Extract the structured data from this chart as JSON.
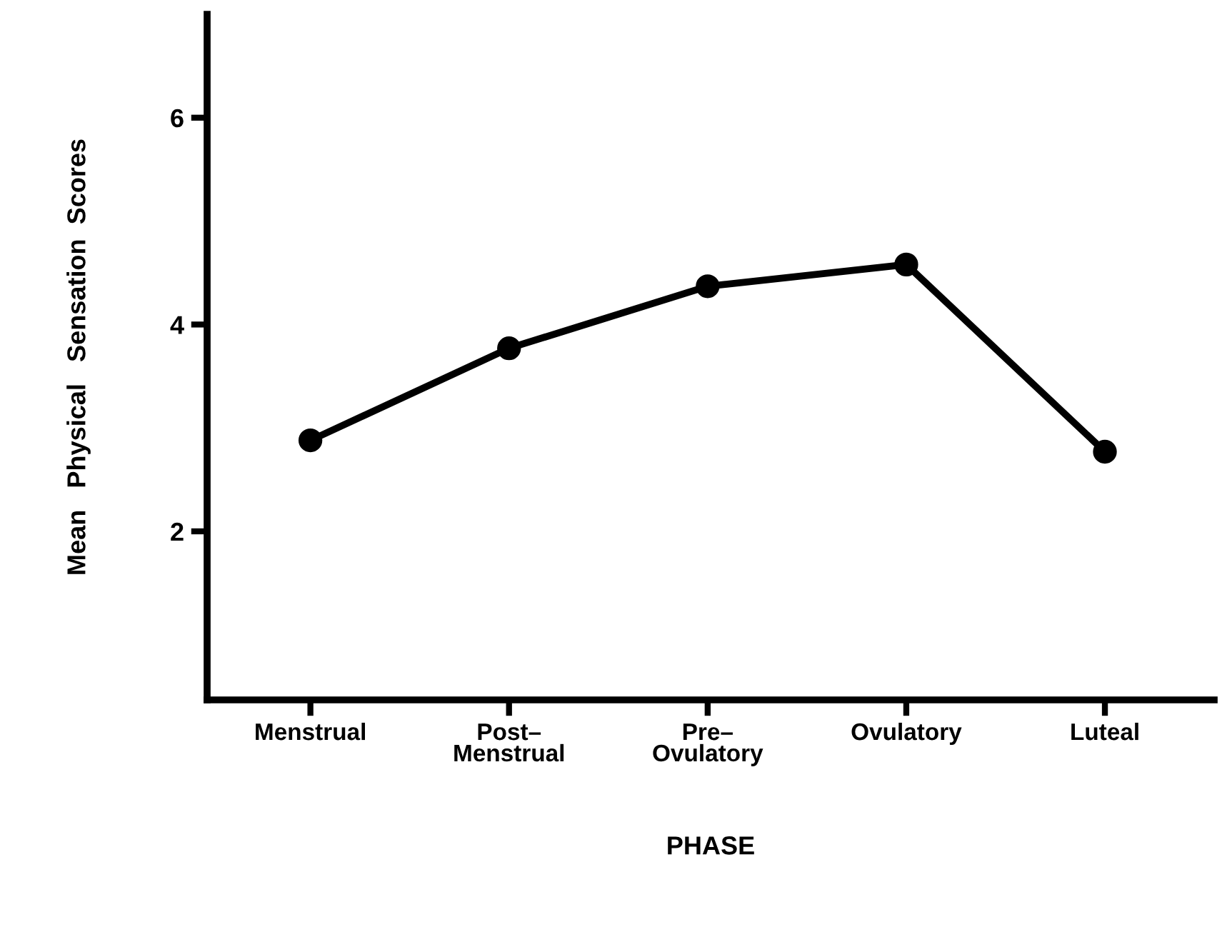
{
  "chart_data": {
    "type": "line",
    "xlabel": "PHASE",
    "ylabel": "Mean   Physical   Sensation  Scores",
    "categories": [
      "Menstrual",
      "Post–\nMenstrual",
      "Pre–\nOvulatory",
      "Ovulatory",
      "Luteal"
    ],
    "series": [
      {
        "color": "#000000",
        "values": [
          2.88,
          3.77,
          4.37,
          4.58,
          2.77
        ]
      }
    ],
    "ylim": [
      0.37,
      7.0
    ],
    "yticks": [
      2,
      4,
      6
    ],
    "marker": "circle",
    "line_style": "solid",
    "grid": false,
    "legend": false
  }
}
